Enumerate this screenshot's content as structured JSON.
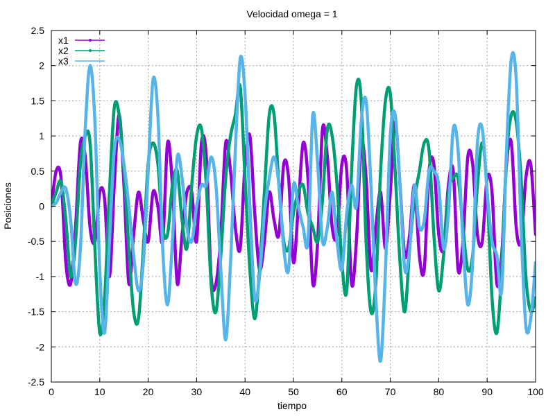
{
  "chart_data": {
    "type": "line",
    "title": "Velocidad omega = 1",
    "xlabel": "tiempo",
    "ylabel": "Posiciones",
    "xlim": [
      0,
      100
    ],
    "ylim": [
      -2.5,
      2.5
    ],
    "xticks": [
      0,
      10,
      20,
      30,
      40,
      50,
      60,
      70,
      80,
      90,
      100
    ],
    "yticks": [
      -2.5,
      -2,
      -1.5,
      -1,
      -0.5,
      0,
      0.5,
      1,
      1.5,
      2,
      2.5
    ],
    "grid": true,
    "legend_position": "top-left",
    "series": [
      {
        "name": "x1",
        "color": "#9400d3",
        "points": [
          [
            0,
            0
          ],
          [
            1,
            0.5
          ],
          [
            2,
            0.4
          ],
          [
            3,
            -0.8
          ],
          [
            4,
            -1.1
          ],
          [
            5,
            -0.3
          ],
          [
            6,
            0.9
          ],
          [
            7,
            0.7
          ],
          [
            8,
            -0.3
          ],
          [
            9,
            -0.5
          ],
          [
            10,
            0.2
          ],
          [
            11,
            0.1
          ],
          [
            12,
            -1.0
          ],
          [
            13,
            0.3
          ],
          [
            14,
            1.3
          ],
          [
            15,
            0.3
          ],
          [
            16,
            -1.1
          ],
          [
            17,
            -0.4
          ],
          [
            18,
            0.2
          ],
          [
            19,
            -0.2
          ],
          [
            20,
            -0.5
          ],
          [
            21,
            0.2
          ],
          [
            22,
            0.0
          ],
          [
            23,
            -0.5
          ],
          [
            24,
            0.9
          ],
          [
            25,
            0.3
          ],
          [
            26,
            -1.1
          ],
          [
            27,
            -0.4
          ],
          [
            28,
            0.2
          ],
          [
            29,
            0.2
          ],
          [
            30,
            -0.5
          ],
          [
            31,
            0.9
          ],
          [
            32,
            0.7
          ],
          [
            33,
            -1.0
          ],
          [
            34,
            -1.1
          ],
          [
            35,
            -0.4
          ],
          [
            36,
            0.9
          ],
          [
            37,
            0.5
          ],
          [
            38,
            -0.3
          ],
          [
            39,
            -0.6
          ],
          [
            40,
            0.6
          ],
          [
            41,
            1.0
          ],
          [
            42,
            -0.1
          ],
          [
            43,
            -0.9
          ],
          [
            44,
            -0.5
          ],
          [
            45,
            0.2
          ],
          [
            46,
            -0.2
          ],
          [
            47,
            -0.4
          ],
          [
            48,
            0.6
          ],
          [
            49,
            0.4
          ],
          [
            50,
            -0.8
          ],
          [
            51,
            0.0
          ],
          [
            52,
            0.9
          ],
          [
            53,
            0.4
          ],
          [
            54,
            -1.1
          ],
          [
            55,
            -0.5
          ],
          [
            56,
            1.1
          ],
          [
            57,
            0.7
          ],
          [
            58,
            -0.3
          ],
          [
            59,
            -0.4
          ],
          [
            60,
            0.6
          ],
          [
            61,
            0.5
          ],
          [
            62,
            -1.1
          ],
          [
            63,
            -0.5
          ],
          [
            64,
            0.9
          ],
          [
            65,
            0.4
          ],
          [
            66,
            -0.9
          ],
          [
            67,
            -0.3
          ],
          [
            68,
            0.2
          ],
          [
            69,
            -0.6
          ],
          [
            70,
            0.2
          ],
          [
            71,
            1.2
          ],
          [
            72,
            0.3
          ],
          [
            73,
            -0.7
          ],
          [
            74,
            -0.4
          ],
          [
            75,
            0.3
          ],
          [
            76,
            -0.7
          ],
          [
            77,
            -0.9
          ],
          [
            78,
            0.5
          ],
          [
            79,
            0.6
          ],
          [
            80,
            -0.4
          ],
          [
            81,
            -0.6
          ],
          [
            82,
            0.3
          ],
          [
            83,
            0.5
          ],
          [
            84,
            -0.9
          ],
          [
            85,
            -0.5
          ],
          [
            86,
            0.7
          ],
          [
            87,
            0.6
          ],
          [
            88,
            -0.4
          ],
          [
            89,
            -0.5
          ],
          [
            90,
            0.4
          ],
          [
            91,
            0.2
          ],
          [
            92,
            -1.1
          ],
          [
            93,
            -0.7
          ],
          [
            94,
            0.6
          ],
          [
            95,
            0.9
          ],
          [
            96,
            -0.3
          ],
          [
            97,
            -0.5
          ],
          [
            98,
            0.4
          ],
          [
            99,
            0.6
          ],
          [
            100,
            -0.4
          ]
        ]
      },
      {
        "name": "x2",
        "color": "#009e73",
        "points": [
          [
            0,
            0
          ],
          [
            1,
            0.2
          ],
          [
            2,
            0.35
          ],
          [
            3,
            -0.2
          ],
          [
            4,
            -1.0
          ],
          [
            5,
            -0.5
          ],
          [
            6,
            0.6
          ],
          [
            7,
            1.0
          ],
          [
            8,
            0.9
          ],
          [
            9,
            -0.6
          ],
          [
            10,
            -1.8
          ],
          [
            11,
            -1.3
          ],
          [
            12,
            0.2
          ],
          [
            13,
            1.4
          ],
          [
            14,
            1.3
          ],
          [
            15,
            0.5
          ],
          [
            16,
            -0.6
          ],
          [
            17,
            -1.5
          ],
          [
            18,
            -1.6
          ],
          [
            19,
            -0.6
          ],
          [
            20,
            0.6
          ],
          [
            21,
            0.9
          ],
          [
            22,
            0.6
          ],
          [
            23,
            -0.3
          ],
          [
            24,
            -0.4
          ],
          [
            25,
            0.3
          ],
          [
            26,
            0.5
          ],
          [
            27,
            -0.2
          ],
          [
            28,
            -0.6
          ],
          [
            29,
            0.3
          ],
          [
            30,
            1.0
          ],
          [
            31,
            1.1
          ],
          [
            32,
            0.3
          ],
          [
            33,
            -1.1
          ],
          [
            34,
            -1.5
          ],
          [
            35,
            -0.7
          ],
          [
            36,
            0.4
          ],
          [
            37,
            1.0
          ],
          [
            38,
            1.3
          ],
          [
            39,
            1.7
          ],
          [
            40,
            0.4
          ],
          [
            41,
            -0.9
          ],
          [
            42,
            -1.6
          ],
          [
            43,
            -0.9
          ],
          [
            44,
            0.2
          ],
          [
            45,
            1.3
          ],
          [
            46,
            1.3
          ],
          [
            47,
            0.3
          ],
          [
            48,
            -0.5
          ],
          [
            49,
            -0.6
          ],
          [
            50,
            -0.1
          ],
          [
            51,
            0.2
          ],
          [
            52,
            0.3
          ],
          [
            53,
            -0.1
          ],
          [
            54,
            -0.3
          ],
          [
            55,
            -0.5
          ],
          [
            56,
            0.1
          ],
          [
            57,
            1.1
          ],
          [
            58,
            1.0
          ],
          [
            59,
            0.3
          ],
          [
            60,
            -0.8
          ],
          [
            61,
            -1.2
          ],
          [
            62,
            0.5
          ],
          [
            63,
            1.7
          ],
          [
            64,
            1.5
          ],
          [
            65,
            -0.5
          ],
          [
            66,
            -1.5
          ],
          [
            67,
            -1.1
          ],
          [
            68,
            0.5
          ],
          [
            69,
            1.5
          ],
          [
            70,
            1.6
          ],
          [
            71,
            0.5
          ],
          [
            72,
            -0.8
          ],
          [
            73,
            -1.5
          ],
          [
            74,
            -0.6
          ],
          [
            75,
            0.1
          ],
          [
            76,
            0.5
          ],
          [
            77,
            0.9
          ],
          [
            78,
            0.8
          ],
          [
            79,
            -0.4
          ],
          [
            80,
            -1.2
          ],
          [
            81,
            -0.7
          ],
          [
            82,
            0.2
          ],
          [
            83,
            0.4
          ],
          [
            84,
            0.4
          ],
          [
            85,
            -0.3
          ],
          [
            86,
            -0.9
          ],
          [
            87,
            -0.7
          ],
          [
            88,
            0.3
          ],
          [
            89,
            0.9
          ],
          [
            90,
            0.2
          ],
          [
            91,
            -1.3
          ],
          [
            92,
            -1.8
          ],
          [
            93,
            -0.9
          ],
          [
            94,
            0.7
          ],
          [
            95,
            1.3
          ],
          [
            96,
            1.2
          ],
          [
            97,
            0.4
          ],
          [
            98,
            -1.0
          ],
          [
            99,
            -1.5
          ],
          [
            100,
            -1.3
          ]
        ]
      },
      {
        "name": "x3",
        "color": "#56b4e9",
        "points": [
          [
            0,
            0
          ],
          [
            1,
            0.05
          ],
          [
            2,
            0.2
          ],
          [
            3,
            0.25
          ],
          [
            4,
            -0.2
          ],
          [
            5,
            -1.1
          ],
          [
            6,
            -0.6
          ],
          [
            7,
            1.1
          ],
          [
            8,
            2.0
          ],
          [
            9,
            1.2
          ],
          [
            10,
            -0.9
          ],
          [
            11,
            -1.8
          ],
          [
            12,
            -0.5
          ],
          [
            13,
            0.8
          ],
          [
            14,
            0.95
          ],
          [
            15,
            0.6
          ],
          [
            16,
            0.0
          ],
          [
            17,
            -0.7
          ],
          [
            18,
            -1.2
          ],
          [
            19,
            -0.8
          ],
          [
            20,
            0.5
          ],
          [
            21,
            1.8
          ],
          [
            22,
            1.3
          ],
          [
            23,
            -0.6
          ],
          [
            24,
            -1.4
          ],
          [
            25,
            -0.5
          ],
          [
            26,
            0.7
          ],
          [
            27,
            0.4
          ],
          [
            28,
            -0.3
          ],
          [
            29,
            -0.5
          ],
          [
            30,
            0.0
          ],
          [
            31,
            0.3
          ],
          [
            32,
            0.3
          ],
          [
            33,
            0.7
          ],
          [
            34,
            0.3
          ],
          [
            35,
            -0.9
          ],
          [
            36,
            -1.9
          ],
          [
            37,
            -0.8
          ],
          [
            38,
            0.8
          ],
          [
            39,
            2.1
          ],
          [
            40,
            1.6
          ],
          [
            41,
            0.0
          ],
          [
            42,
            -1.3
          ],
          [
            43,
            -1.0
          ],
          [
            44,
            -0.1
          ],
          [
            45,
            0.4
          ],
          [
            46,
            0.7
          ],
          [
            47,
            0.3
          ],
          [
            48,
            -0.6
          ],
          [
            49,
            -0.9
          ],
          [
            50,
            0.3
          ],
          [
            51,
            0.0
          ],
          [
            52,
            -0.3
          ],
          [
            53,
            -0.5
          ],
          [
            54,
            1.3
          ],
          [
            55,
            0.6
          ],
          [
            56,
            -0.5
          ],
          [
            57,
            -0.3
          ],
          [
            58,
            0.2
          ],
          [
            59,
            -0.5
          ],
          [
            60,
            -0.9
          ],
          [
            61,
            -0.1
          ],
          [
            62,
            0.3
          ],
          [
            63,
            0.0
          ],
          [
            64,
            1.2
          ],
          [
            65,
            1.5
          ],
          [
            66,
            0.3
          ],
          [
            67,
            -1.3
          ],
          [
            68,
            -2.2
          ],
          [
            69,
            -0.9
          ],
          [
            70,
            1.0
          ],
          [
            71,
            1.3
          ],
          [
            72,
            0.3
          ],
          [
            73,
            -0.9
          ],
          [
            74,
            -0.6
          ],
          [
            75,
            0.3
          ],
          [
            76,
            -0.3
          ],
          [
            77,
            -0.2
          ],
          [
            78,
            0.5
          ],
          [
            79,
            0.5
          ],
          [
            80,
            0.3
          ],
          [
            81,
            -0.6
          ],
          [
            82,
            -0.1
          ],
          [
            83,
            1.1
          ],
          [
            84,
            0.8
          ],
          [
            85,
            -0.5
          ],
          [
            86,
            -1.4
          ],
          [
            87,
            -0.8
          ],
          [
            88,
            0.9
          ],
          [
            89,
            1.1
          ],
          [
            90,
            0.2
          ],
          [
            91,
            -0.5
          ],
          [
            92,
            -0.7
          ],
          [
            93,
            -1.2
          ],
          [
            94,
            0.8
          ],
          [
            95,
            2.1
          ],
          [
            96,
            1.8
          ],
          [
            97,
            -0.3
          ],
          [
            98,
            -1.7
          ],
          [
            99,
            -1.6
          ],
          [
            100,
            -0.8
          ]
        ]
      }
    ]
  }
}
